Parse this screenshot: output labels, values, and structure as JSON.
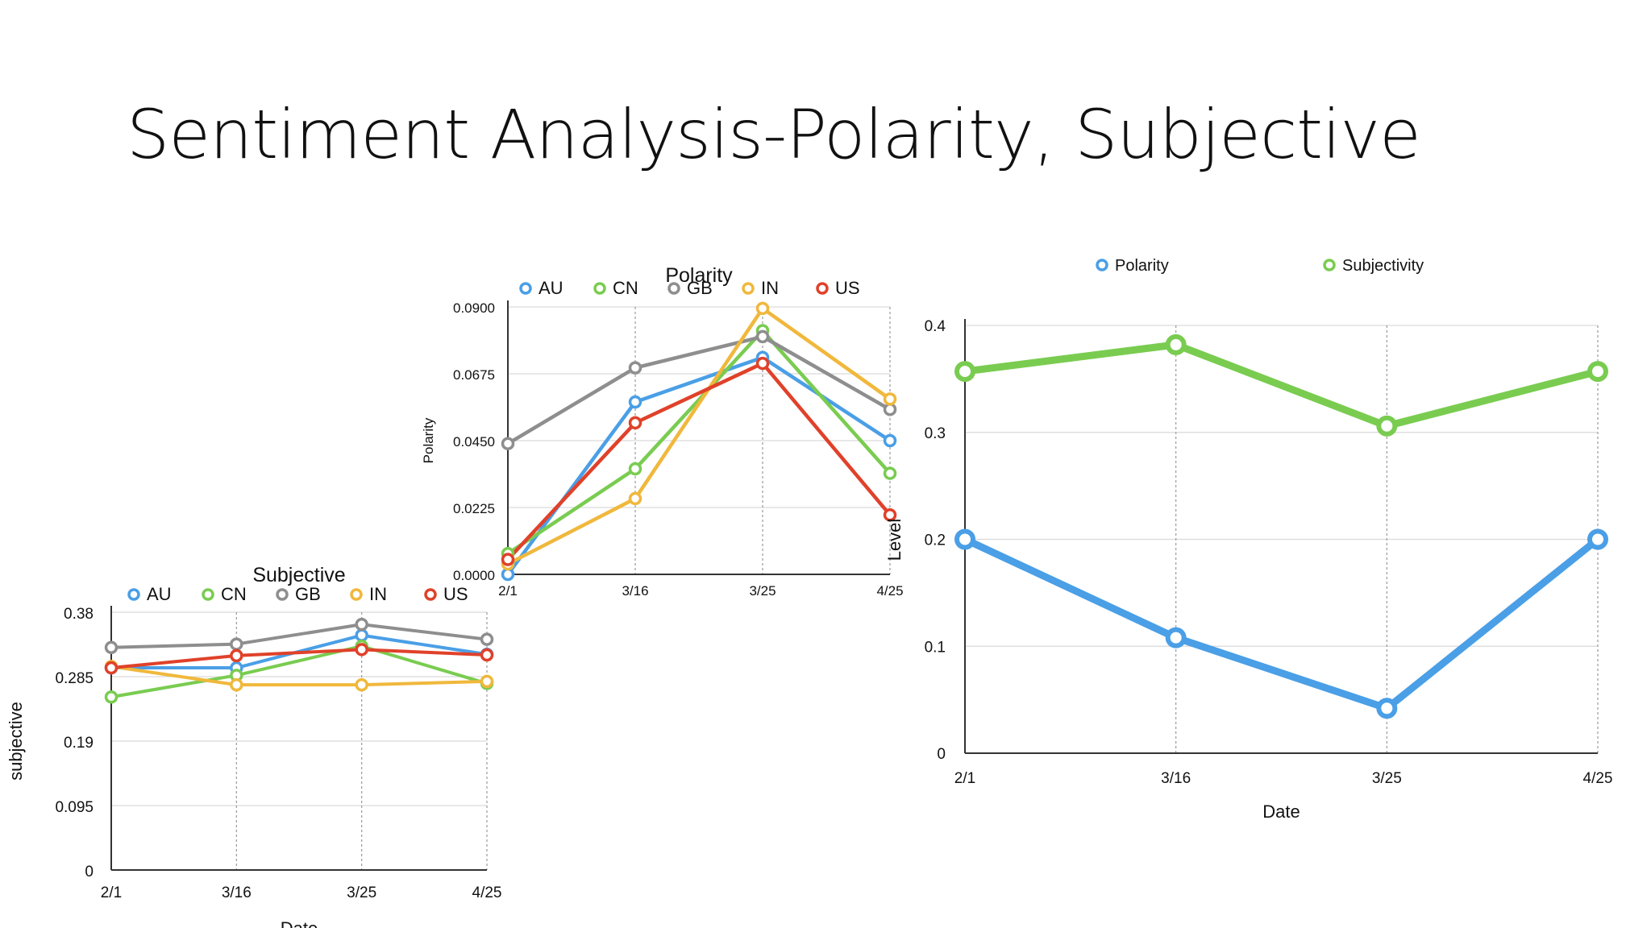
{
  "slide": {
    "title": "Sentiment Analysis-Polarity, Subjective"
  },
  "chart_data": [
    {
      "type": "line",
      "title": "Polarity",
      "xlabel": "",
      "ylabel": "Polarity",
      "categories": [
        "2/1",
        "3/16",
        "3/25",
        "4/25"
      ],
      "y_ticks": [
        "0.0000",
        "0.0225",
        "0.0450",
        "0.0675",
        "0.0900"
      ],
      "ylim": [
        0,
        0.09
      ],
      "grid": true,
      "legend": "top",
      "series": [
        {
          "name": "AU",
          "color": "#4a9fe6",
          "values": [
            0.0,
            0.058,
            0.073,
            0.045
          ]
        },
        {
          "name": "CN",
          "color": "#79cc50",
          "values": [
            0.007,
            0.0355,
            0.082,
            0.034
          ]
        },
        {
          "name": "GB",
          "color": "#8e8e8e",
          "values": [
            0.044,
            0.0695,
            0.08,
            0.0555
          ]
        },
        {
          "name": "IN",
          "color": "#f0b83c",
          "values": [
            0.0035,
            0.0255,
            0.0895,
            0.059
          ]
        },
        {
          "name": "US",
          "color": "#e0412a",
          "values": [
            0.005,
            0.051,
            0.071,
            0.02
          ]
        }
      ]
    },
    {
      "type": "line",
      "title": "Subjective",
      "xlabel": "Date",
      "ylabel": "subjective",
      "categories": [
        "2/1",
        "3/16",
        "3/25",
        "4/25"
      ],
      "y_ticks": [
        "0",
        "0.095",
        "0.19",
        "0.285",
        "0.38"
      ],
      "ylim": [
        0,
        0.38
      ],
      "grid": true,
      "legend": "top",
      "series": [
        {
          "name": "AU",
          "color": "#4a9fe6",
          "values": [
            0.298,
            0.298,
            0.346,
            0.318
          ]
        },
        {
          "name": "CN",
          "color": "#79cc50",
          "values": [
            0.255,
            0.287,
            0.33,
            0.275
          ]
        },
        {
          "name": "GB",
          "color": "#8e8e8e",
          "values": [
            0.328,
            0.333,
            0.362,
            0.34
          ]
        },
        {
          "name": "IN",
          "color": "#f0b83c",
          "values": [
            0.3,
            0.273,
            0.273,
            0.278
          ]
        },
        {
          "name": "US",
          "color": "#e0412a",
          "values": [
            0.298,
            0.316,
            0.325,
            0.317
          ]
        }
      ]
    },
    {
      "type": "line",
      "title": "",
      "xlabel": "Date",
      "ylabel": "Level",
      "categories": [
        "2/1",
        "3/16",
        "3/25",
        "4/25"
      ],
      "y_ticks": [
        "0",
        "0.1",
        "0.2",
        "0.3",
        "0.4"
      ],
      "ylim": [
        0,
        0.4
      ],
      "grid": true,
      "legend": "top",
      "series": [
        {
          "name": "Polarity",
          "color": "#4a9fe6",
          "values": [
            0.2,
            0.108,
            0.042,
            0.2
          ]
        },
        {
          "name": "Subjectivity",
          "color": "#79cc50",
          "values": [
            0.357,
            0.382,
            0.306,
            0.357
          ]
        }
      ]
    }
  ]
}
